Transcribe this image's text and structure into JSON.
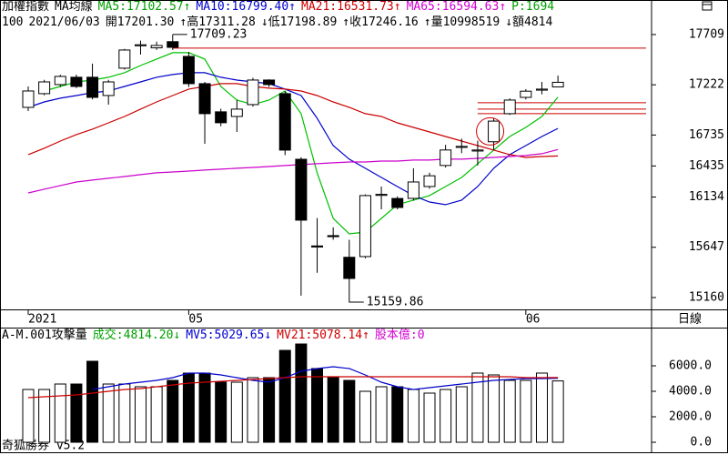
{
  "chart_data": {
    "type": "candlestick",
    "title": "加權指數",
    "indicator_title": "MA均線",
    "indicator_labels": [
      {
        "text": "MA5:17102.57↑",
        "color": "#00a000"
      },
      {
        "text": "MA10:16799.40↑",
        "color": "#0000d0"
      },
      {
        "text": "MA21:16531.73↑",
        "color": "#d00000"
      },
      {
        "text": "MA65:16594.63↑",
        "color": "#d000d0"
      },
      {
        "text": "P:1694",
        "color": "#00a000"
      }
    ],
    "info": [
      "100",
      "2021/06/03",
      "開17201.30",
      "↑高17311.28",
      "↓低17198.89",
      "↑收17246.16",
      "↑量10998519",
      "↓額4814"
    ],
    "period": "日線",
    "categories": [
      "2021",
      null,
      null,
      null,
      null,
      null,
      null,
      null,
      null,
      null,
      "05",
      null,
      null,
      null,
      null,
      null,
      null,
      null,
      null,
      null,
      null,
      null,
      null,
      null,
      null,
      null,
      null,
      null,
      null,
      null,
      null,
      "06",
      null,
      null
    ],
    "open": [
      17003,
      17136,
      17224,
      17295,
      17295,
      17118,
      17383,
      17600,
      17580,
      17640,
      17497,
      17233,
      16960,
      16915,
      17030,
      17268,
      17136,
      16500,
      15660,
      15760,
      15550,
      15557,
      16150,
      16120,
      16121,
      16236,
      16440,
      16615,
      16580,
      16670,
      16942,
      17100,
      17170,
      17201.3
    ],
    "high": [
      17206,
      17270,
      17320,
      17320,
      17427,
      17270,
      17570,
      17650,
      17640,
      17709.23,
      17540,
      17250,
      16990,
      17074,
      17290,
      17275,
      17160,
      16520,
      15930,
      15840,
      15720,
      16160,
      16236,
      16140,
      16413,
      16370,
      16640,
      16700,
      16680,
      16900,
      17090,
      17180,
      17250,
      17311.28
    ],
    "low": [
      16968,
      17120,
      17200,
      17190,
      17080,
      17030,
      17370,
      17515,
      17560,
      17560,
      17200,
      16650,
      16820,
      16765,
      17010,
      17200,
      16540,
      15178,
      15400,
      15720,
      15159.86,
      15540,
      16015,
      16015,
      16100,
      16215,
      16420,
      16560,
      16440,
      16590,
      16930,
      17080,
      17130,
      17198.89
    ],
    "close": [
      17162,
      17250,
      17303,
      17206,
      17100,
      17250,
      17559,
      17610,
      17603,
      17585,
      17233,
      16942,
      16854,
      16986,
      17268,
      17224,
      16589,
      15910,
      15650,
      15750,
      15345,
      16148,
      16160,
      16033,
      16280,
      16340,
      16590,
      16625,
      16590,
      16870,
      17074,
      17160,
      17180,
      17246.16
    ],
    "series": [
      {
        "name": "MA5",
        "color": "#00c000",
        "values": [
          null,
          17162,
          17206,
          17250,
          17268,
          17295,
          17339,
          17409,
          17471,
          17533,
          17533,
          17471,
          17206,
          17074,
          17030,
          17074,
          17162,
          16942,
          16369,
          15927,
          15777,
          15795,
          15927,
          16060,
          16104,
          16148,
          16236,
          16324,
          16457,
          16589,
          16721,
          16809,
          16915,
          17102.57
        ]
      },
      {
        "name": "MA10",
        "color": "#0000cc",
        "values": [
          17003,
          17056,
          17092,
          17118,
          17145,
          17162,
          17206,
          17250,
          17295,
          17321,
          17339,
          17339,
          17295,
          17268,
          17250,
          17233,
          17180,
          17118,
          16898,
          16633,
          16501,
          16413,
          16324,
          16236,
          16148,
          16086,
          16060,
          16104,
          16236,
          16413,
          16545,
          16633,
          16721,
          16799.4
        ]
      },
      {
        "name": "MA21",
        "color": "#cc0000",
        "values": [
          16545,
          16607,
          16677,
          16739,
          16792,
          16853,
          16915,
          16986,
          17056,
          17118,
          17180,
          17206,
          17233,
          17233,
          17206,
          17189,
          17180,
          17162,
          17118,
          17056,
          17003,
          16942,
          16915,
          16853,
          16809,
          16765,
          16721,
          16677,
          16633,
          16589,
          16545,
          16518,
          16527,
          16531.73
        ]
      },
      {
        "name": "MA65",
        "color": "#cc00cc",
        "values": [
          16174,
          16210,
          16245,
          16280,
          16298,
          16316,
          16333,
          16351,
          16369,
          16377,
          16386,
          16395,
          16404,
          16413,
          16421,
          16430,
          16439,
          16448,
          16457,
          16466,
          16474,
          16474,
          16483,
          16483,
          16492,
          16492,
          16501,
          16501,
          16509,
          16518,
          16527,
          16536,
          16554,
          16594.63
        ]
      }
    ],
    "ylim": [
      15045,
      17885
    ],
    "yticks": [
      17709,
      17222,
      16735,
      16435,
      16134,
      15647,
      15160
    ],
    "annotations": [
      {
        "text": "17709.23",
        "index": 9,
        "field": "high"
      },
      {
        "text": "15159.86",
        "index": 20,
        "field": "low"
      }
    ],
    "hlines": [
      {
        "value": 17577,
        "from": 9,
        "color": "#cc0000"
      },
      {
        "value": 17048,
        "from": 28,
        "color": "#cc0000"
      },
      {
        "value": 16986,
        "from": 28,
        "color": "#cc0000"
      },
      {
        "value": 16942,
        "from": 28,
        "color": "#cc0000"
      }
    ],
    "highlight_index": 29,
    "volume": {
      "title": "A-M.001攻擊量",
      "labels": [
        {
          "text": "成交:4814.20↓",
          "color": "#00a000"
        },
        {
          "text": "MV5:5029.65↓",
          "color": "#0000d0"
        },
        {
          "text": "MV21:5078.14↑",
          "color": "#d00000"
        },
        {
          "text": "股本億:0",
          "color": "#d000d0"
        }
      ],
      "values": [
        4143,
        4143,
        4571,
        4571,
        6357,
        4571,
        4571,
        4357,
        4357,
        4857,
        5429,
        5429,
        4714,
        4714,
        5071,
        5071,
        7214,
        7714,
        5786,
        5071,
        4857,
        4000,
        4357,
        4357,
        4143,
        3857,
        4143,
        4357,
        5429,
        5286,
        4857,
        4857,
        5429,
        4814.2
      ],
      "series": [
        {
          "name": "MV5",
          "color": "#0000cc",
          "values": [
            null,
            null,
            null,
            null,
            4143,
            4357,
            4571,
            4714,
            4857,
            5071,
            5429,
            5429,
            5286,
            5071,
            4857,
            4714,
            5071,
            5571,
            5786,
            5929,
            5786,
            5286,
            4714,
            4357,
            4143,
            4286,
            4429,
            4571,
            4714,
            4857,
            4929,
            5000,
            5000,
            5029.65
          ]
        },
        {
          "name": "MV21",
          "color": "#cc0000",
          "values": [
            3500,
            3571,
            3643,
            3714,
            3857,
            4000,
            4143,
            4214,
            4357,
            4500,
            4643,
            4714,
            4786,
            4857,
            4929,
            5000,
            5071,
            5143,
            5143,
            5143,
            5143,
            5143,
            5143,
            5143,
            5143,
            5143,
            5143,
            5143,
            5143,
            5143,
            5143,
            5071,
            5071,
            5078.14
          ]
        }
      ],
      "ylim": [
        -786,
        8857
      ],
      "yticks": [
        {
          "value": 6000,
          "label": "6000.0"
        },
        {
          "value": 4000,
          "label": "4000.0"
        },
        {
          "value": 2000,
          "label": "2000.0"
        },
        {
          "value": 0,
          "label": "0.0"
        }
      ]
    },
    "footer": "奇狐勝券 v5.2"
  }
}
